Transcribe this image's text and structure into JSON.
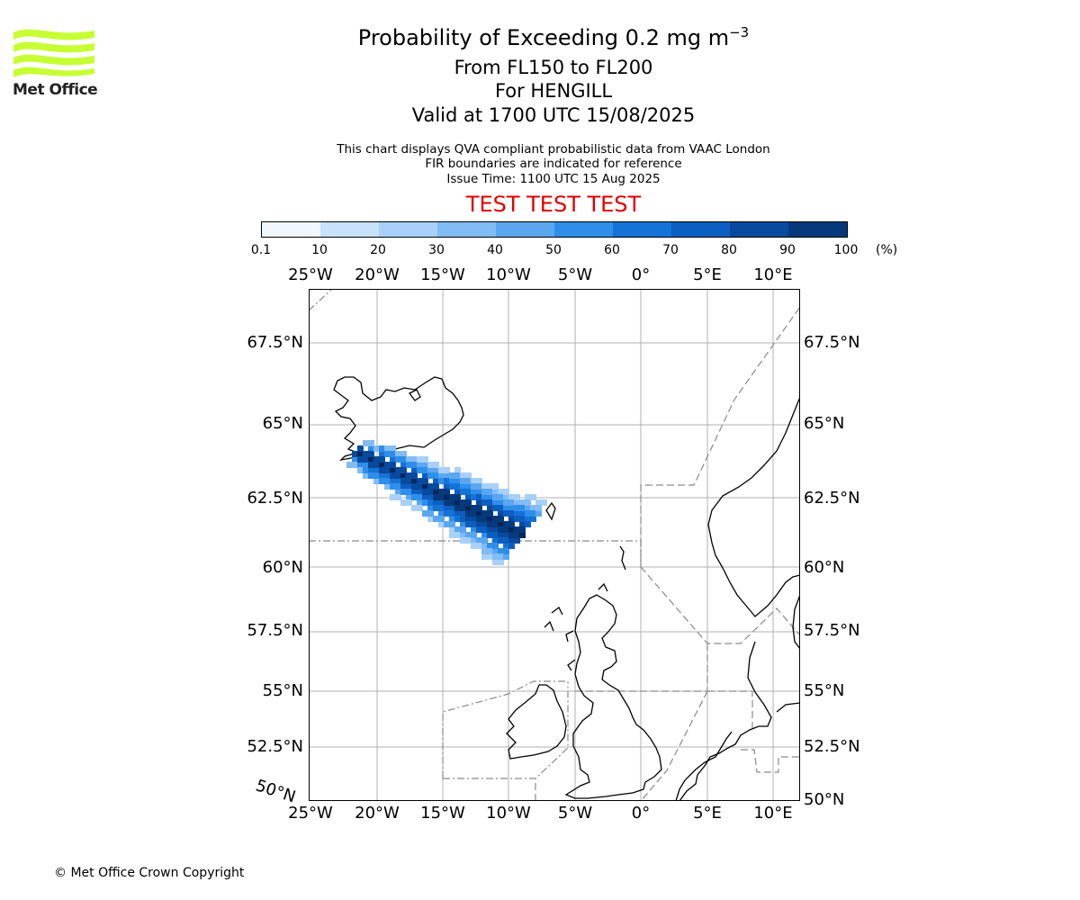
{
  "logo": {
    "text": "Met Office"
  },
  "title": {
    "main_prefix": "Probability of Exceeding 0.2 mg m",
    "main_exponent": "−3",
    "line2": "From FL150 to FL200",
    "line3": "For HENGILL",
    "line4": "Valid at 1700 UTC 15/08/2025"
  },
  "info": {
    "line1": "This chart displays QVA compliant probabilistic data from VAAC London",
    "line2": "FIR boundaries are indicated for reference",
    "line3": "Issue Time: 1100 UTC 15 Aug 2025"
  },
  "test_banner": "TEST TEST TEST",
  "colorbar": {
    "unit": "(%)",
    "ticks": [
      "0.1",
      "10",
      "20",
      "30",
      "40",
      "50",
      "60",
      "70",
      "80",
      "90",
      "100"
    ],
    "colors": [
      "#f1f7ff",
      "#c9e2fb",
      "#a8d0f8",
      "#82bcf5",
      "#5aa7f0",
      "#2e8ee9",
      "#1573d7",
      "#0c5ec0",
      "#084a9e",
      "#05397c",
      "#02265a"
    ]
  },
  "map": {
    "lon_labels": [
      "25°W",
      "20°W",
      "15°W",
      "10°W",
      "5°W",
      "0°",
      "5°E",
      "10°E"
    ],
    "lat_labels_left": [
      "67.5°N",
      "65°N",
      "62.5°N",
      "60°N",
      "57.5°N",
      "55°N",
      "52.5°N",
      "50°N"
    ],
    "lat_labels_right": [
      "67.5°N",
      "65°N",
      "62.5°N",
      "60°N",
      "57.5°N",
      "55°N",
      "52.5°N",
      "50°N"
    ]
  },
  "copyright": "© Met Office Crown Copyright"
}
